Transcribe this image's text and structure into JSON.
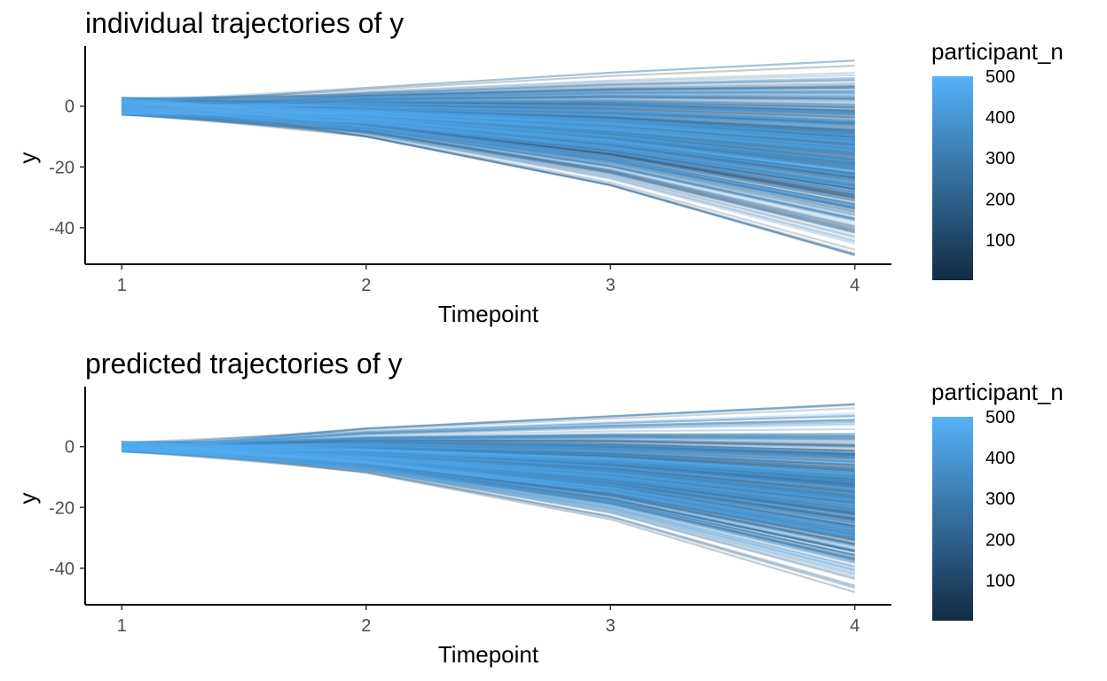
{
  "chart_data": [
    {
      "type": "line",
      "title": "individual trajectories of y",
      "xlabel": "Timepoint",
      "ylabel": "y",
      "x": [
        1,
        2,
        3,
        4
      ],
      "xlim": [
        0.85,
        4.15
      ],
      "ylim": [
        -52,
        18
      ],
      "x_ticks": [
        "1",
        "2",
        "3",
        "4"
      ],
      "y_ticks": [
        "-40",
        "-20",
        "0"
      ],
      "y_tick_values": [
        -40,
        -20,
        0
      ],
      "series_count": 500,
      "series_description": "one line per participant; values at timepoint 1 near 0 (approx. -3 to 4), spreading to approx. -49 to 15 at timepoint 4",
      "envelope": {
        "upper": [
          4,
          6,
          11,
          15
        ],
        "lower": [
          -3,
          -10,
          -26,
          -49
        ],
        "median": [
          0,
          -3,
          -8,
          -15
        ]
      },
      "legend": {
        "title": "participant_n",
        "type": "colorbar",
        "labels": [
          "500",
          "400",
          "300",
          "200",
          "100"
        ],
        "values": [
          500,
          400,
          300,
          200,
          100
        ],
        "range": [
          1,
          500
        ],
        "low_color": "#132b43",
        "high_color": "#56b1f7",
        "placement": "right"
      },
      "grid": false
    },
    {
      "type": "line",
      "title": "predicted trajectories of y",
      "xlabel": "Timepoint",
      "ylabel": "y",
      "x": [
        1,
        2,
        3,
        4
      ],
      "xlim": [
        0.85,
        4.15
      ],
      "ylim": [
        -52,
        18
      ],
      "x_ticks": [
        "1",
        "2",
        "3",
        "4"
      ],
      "y_ticks": [
        "-40",
        "-20",
        "0"
      ],
      "y_tick_values": [
        -40,
        -20,
        0
      ],
      "series_count": 500,
      "series_description": "one line per participant; values at timepoint 1 near 0 (approx. -2 to 2), spreading to approx. -50 to 14 at timepoint 4",
      "envelope": {
        "upper": [
          2,
          6,
          10,
          14
        ],
        "lower": [
          -2,
          -9,
          -25,
          -50
        ],
        "median": [
          0,
          -3,
          -8,
          -16
        ]
      },
      "legend": {
        "title": "participant_n",
        "type": "colorbar",
        "labels": [
          "500",
          "400",
          "300",
          "200",
          "100"
        ],
        "values": [
          500,
          400,
          300,
          200,
          100
        ],
        "range": [
          1,
          500
        ],
        "low_color": "#132b43",
        "high_color": "#56b1f7",
        "placement": "right"
      },
      "grid": false
    }
  ]
}
